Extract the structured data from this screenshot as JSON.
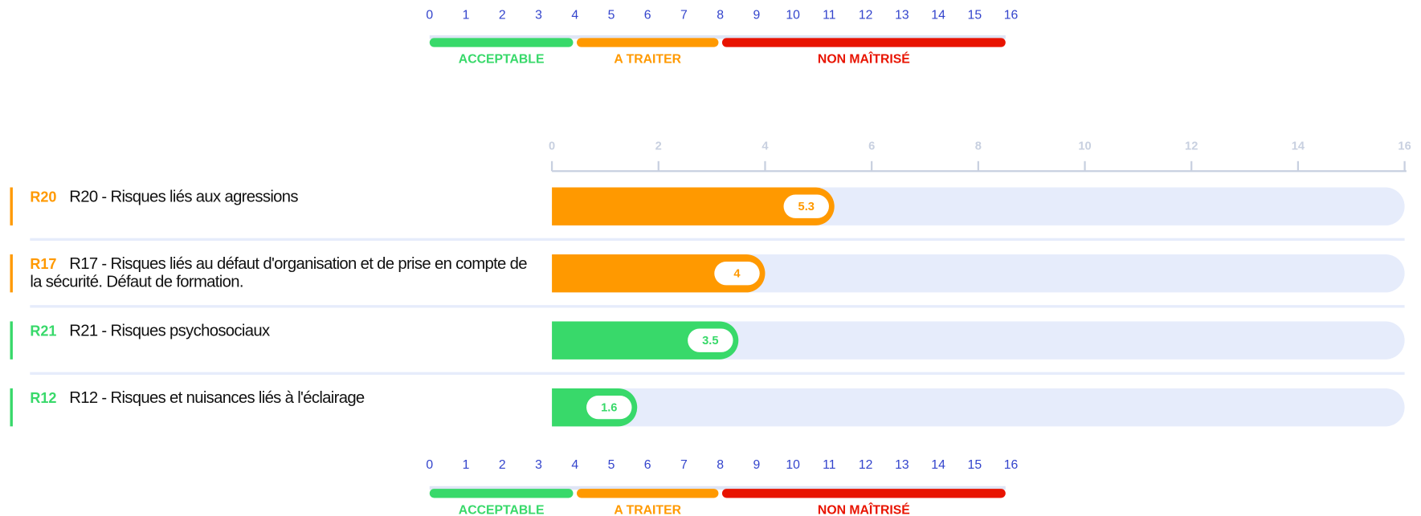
{
  "chart_data": {
    "type": "bar",
    "codes": [
      "R20",
      "R17",
      "R21",
      "R12"
    ],
    "categories": [
      "R20 - Risques liés aux agressions",
      "R17 - Risques liés au défaut d'organisation et de prise en compte de la sécurité. Défaut de formation.",
      "R21 - Risques psychosociaux",
      "R12 - Risques et nuisances liés à l'éclairage"
    ],
    "values": [
      5.3,
      4,
      3.5,
      1.6
    ],
    "colors": [
      "#ff9900",
      "#ff9900",
      "#38d96a",
      "#38d96a"
    ],
    "xlim": [
      0,
      16
    ],
    "xticks": [
      0,
      2,
      4,
      6,
      8,
      10,
      12,
      14,
      16
    ],
    "scale": {
      "ticks": [
        0,
        1,
        2,
        3,
        4,
        5,
        6,
        7,
        8,
        9,
        10,
        11,
        12,
        13,
        14,
        15,
        16
      ],
      "bands": [
        {
          "label": "ACCEPTABLE",
          "from": 0,
          "to": 4,
          "color": "#38d96a"
        },
        {
          "label": "A TRAITER",
          "from": 4,
          "to": 8,
          "color": "#ff9900"
        },
        {
          "label": "NON MAÎTRISÉ",
          "from": 8,
          "to": 16,
          "color": "#e81300"
        }
      ]
    }
  }
}
